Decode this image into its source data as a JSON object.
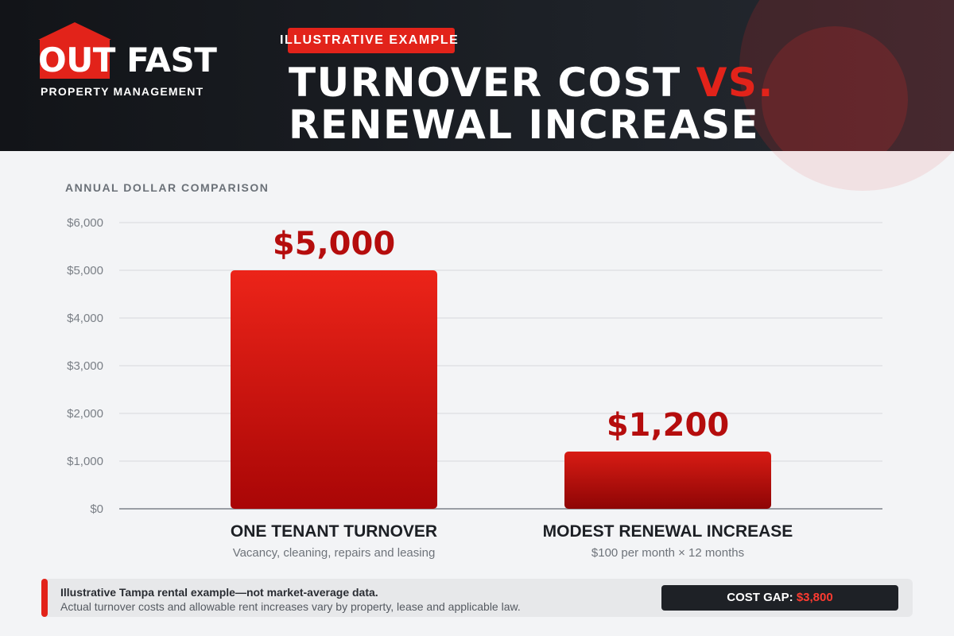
{
  "header": {
    "brand_main": "OUT FAST",
    "brand_sub": "PROPERTY MANAGEMENT",
    "tag": "ILLUSTRATIVE EXAMPLE",
    "title_line1_a": "TURNOVER COST",
    "title_line1_b": "VS.",
    "title_line2": "RENEWAL INCREASE"
  },
  "colors": {
    "accent": "#e2231a",
    "header_bg": "#1a1d22",
    "value_text": "#b50d0d"
  },
  "chart_data": {
    "type": "bar",
    "title": "ANNUAL DOLLAR COMPARISON",
    "categories": [
      "ONE TENANT TURNOVER",
      "MODEST RENEWAL INCREASE"
    ],
    "category_notes": [
      "Vacancy, cleaning, repairs and leasing",
      "$100 per month × 12 months"
    ],
    "values": [
      5000,
      1200
    ],
    "value_labels": [
      "$5,000",
      "$1,200"
    ],
    "ylim": [
      0,
      6000
    ],
    "yticks": [
      0,
      1000,
      2000,
      3000,
      4000,
      5000,
      6000
    ],
    "ytick_labels": [
      "$0",
      "$1,000",
      "$2,000",
      "$3,000",
      "$4,000",
      "$5,000",
      "$6,000"
    ],
    "grid": true,
    "legend": "none"
  },
  "footer": {
    "line1": "Illustrative Tampa rental example—not market-average data.",
    "line2": "Actual turnover costs and allowable rent increases vary by property, lease and applicable law.",
    "gap_label": "COST GAP:",
    "gap_value": "$3,800"
  }
}
